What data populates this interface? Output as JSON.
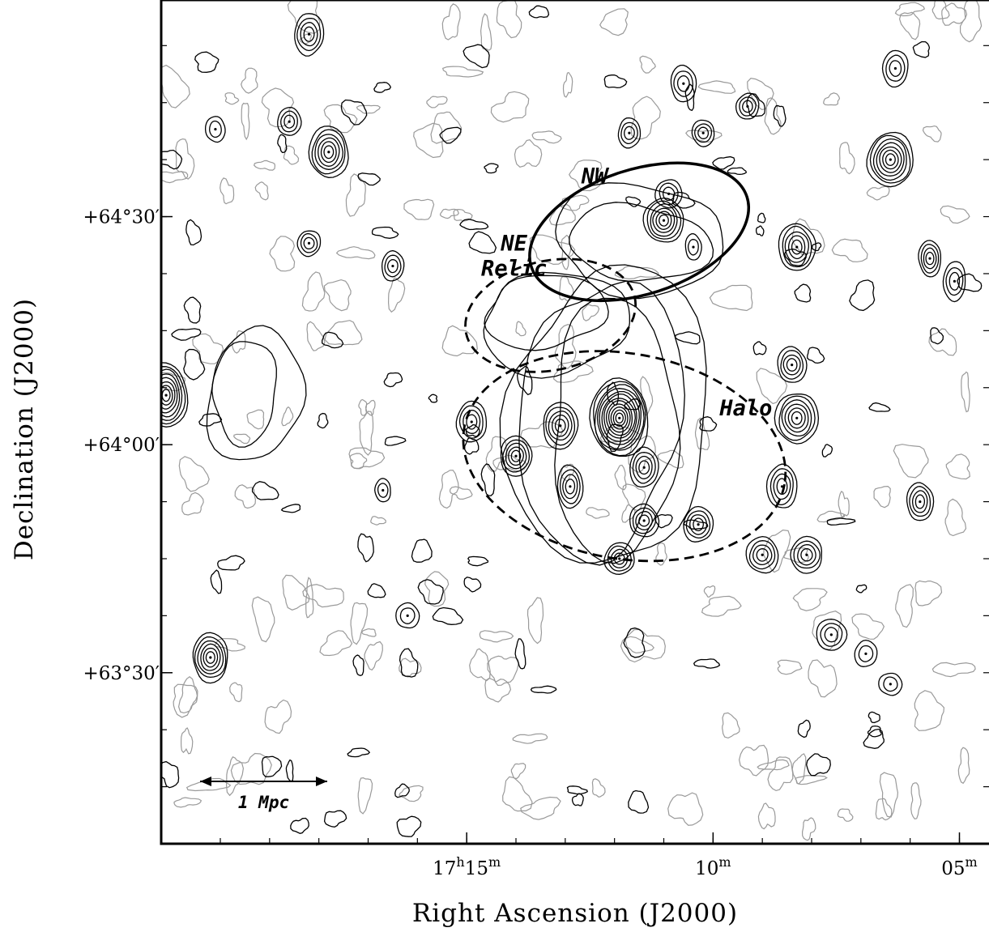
{
  "chart_data": {
    "type": "contour",
    "xlabel": "Right Ascension (J2000)",
    "ylabel": "Declination (J2000)",
    "x_ticks": [
      {
        "ra_min": 1035,
        "h": "17",
        "m": "15"
      },
      {
        "ra_min": 1030,
        "h": "",
        "m": "10"
      },
      {
        "ra_min": 1025,
        "h": "",
        "m": "05"
      }
    ],
    "y_ticks": [
      {
        "dec_arcmin": 3870,
        "label": "+64°30′"
      },
      {
        "dec_arcmin": 3840,
        "label": "+64°00′"
      },
      {
        "dec_arcmin": 3810,
        "label": "+63°30′"
      }
    ],
    "xlim_ra_min": [
      1041.2,
      1024.4
    ],
    "ylim_dec_arcmin": [
      3787.5,
      3898.5
    ],
    "regions": [
      {
        "name": "NW",
        "label_lines": [
          "NW"
        ],
        "ra": 1031.5,
        "dec": 3868,
        "a": 2.3,
        "b": 8.2,
        "angle": -18,
        "style": "solid"
      },
      {
        "name": "NE Relic",
        "label_lines": [
          "NE",
          "Relic"
        ],
        "ra": 1033.3,
        "dec": 3857,
        "a": 1.75,
        "b": 7.2,
        "angle": -12,
        "style": "dashed"
      },
      {
        "name": "Halo",
        "label_lines": [
          "Halo"
        ],
        "ra": 1031.8,
        "dec": 3838.5,
        "a": 3.3,
        "b": 13.5,
        "angle": 10,
        "style": "dashed"
      }
    ],
    "scale_bar": {
      "label": "1 Mpc"
    },
    "sources": [
      {
        "ra": 1031.9,
        "dec": 3843.5,
        "n": 12,
        "step": 6,
        "rx": 36,
        "ry": 48
      },
      {
        "ra": 1026.4,
        "dec": 3877.5,
        "n": 7,
        "step": 5,
        "rx": 28,
        "ry": 34
      },
      {
        "ra": 1041.1,
        "dec": 3846.5,
        "n": 8,
        "step": 5,
        "rx": 26,
        "ry": 40
      },
      {
        "ra": 1037.8,
        "dec": 3878.5,
        "n": 6,
        "step": 5,
        "rx": 24,
        "ry": 32
      },
      {
        "ra": 1031.0,
        "dec": 3869.5,
        "n": 6,
        "step": 5,
        "rx": 24,
        "ry": 28
      },
      {
        "ra": 1028.3,
        "dec": 3843.5,
        "n": 6,
        "step": 5,
        "rx": 26,
        "ry": 32
      },
      {
        "ra": 1028.3,
        "dec": 3866.0,
        "n": 5,
        "step": 5,
        "rx": 22,
        "ry": 30
      },
      {
        "ra": 1040.2,
        "dec": 3812.0,
        "n": 6,
        "step": 5,
        "rx": 22,
        "ry": 30
      },
      {
        "ra": 1033.1,
        "dec": 3842.5,
        "n": 5,
        "step": 5,
        "rx": 22,
        "ry": 28
      },
      {
        "ra": 1034.0,
        "dec": 3838.5,
        "n": 5,
        "step": 5,
        "rx": 20,
        "ry": 24
      },
      {
        "ra": 1034.9,
        "dec": 3843.0,
        "n": 4,
        "step": 5,
        "rx": 18,
        "ry": 26
      },
      {
        "ra": 1031.4,
        "dec": 3837.0,
        "n": 4,
        "step": 5,
        "rx": 18,
        "ry": 24
      },
      {
        "ra": 1032.9,
        "dec": 3834.5,
        "n": 4,
        "step": 5,
        "rx": 16,
        "ry": 26
      },
      {
        "ra": 1031.4,
        "dec": 3830.0,
        "n": 4,
        "step": 5,
        "rx": 18,
        "ry": 20
      },
      {
        "ra": 1030.3,
        "dec": 3829.5,
        "n": 4,
        "step": 5,
        "rx": 18,
        "ry": 22
      },
      {
        "ra": 1028.4,
        "dec": 3850.5,
        "n": 4,
        "step": 5,
        "rx": 18,
        "ry": 22
      },
      {
        "ra": 1028.6,
        "dec": 3834.5,
        "n": 4,
        "step": 5,
        "rx": 18,
        "ry": 28
      },
      {
        "ra": 1029.0,
        "dec": 3825.5,
        "n": 4,
        "step": 5,
        "rx": 20,
        "ry": 22
      },
      {
        "ra": 1028.1,
        "dec": 3825.5,
        "n": 4,
        "step": 5,
        "rx": 20,
        "ry": 22
      },
      {
        "ra": 1027.6,
        "dec": 3815.0,
        "n": 3,
        "step": 5,
        "rx": 18,
        "ry": 20
      },
      {
        "ra": 1031.9,
        "dec": 3825.0,
        "n": 4,
        "step": 5,
        "rx": 18,
        "ry": 20
      },
      {
        "ra": 1025.8,
        "dec": 3832.5,
        "n": 4,
        "step": 5,
        "rx": 16,
        "ry": 24
      },
      {
        "ra": 1025.6,
        "dec": 3864.5,
        "n": 4,
        "step": 5,
        "rx": 14,
        "ry": 22
      },
      {
        "ra": 1038.2,
        "dec": 3866.5,
        "n": 3,
        "step": 5,
        "rx": 14,
        "ry": 16
      },
      {
        "ra": 1038.2,
        "dec": 3894.0,
        "n": 4,
        "step": 5,
        "rx": 18,
        "ry": 26
      },
      {
        "ra": 1038.6,
        "dec": 3882.5,
        "n": 3,
        "step": 5,
        "rx": 14,
        "ry": 18
      },
      {
        "ra": 1030.6,
        "dec": 3887.5,
        "n": 3,
        "step": 5,
        "rx": 16,
        "ry": 22
      },
      {
        "ra": 1029.3,
        "dec": 3884.5,
        "n": 3,
        "step": 5,
        "rx": 14,
        "ry": 16
      },
      {
        "ra": 1030.9,
        "dec": 3873.0,
        "n": 3,
        "step": 5,
        "rx": 16,
        "ry": 18
      },
      {
        "ra": 1026.3,
        "dec": 3889.5,
        "n": 3,
        "step": 5,
        "rx": 16,
        "ry": 22
      },
      {
        "ra": 1036.5,
        "dec": 3863.5,
        "n": 3,
        "step": 5,
        "rx": 14,
        "ry": 18
      },
      {
        "ra": 1031.7,
        "dec": 3881.0,
        "n": 3,
        "step": 5,
        "rx": 14,
        "ry": 18
      },
      {
        "ra": 1030.2,
        "dec": 3881.0,
        "n": 3,
        "step": 5,
        "rx": 14,
        "ry": 16
      },
      {
        "ra": 1025.1,
        "dec": 3861.5,
        "n": 3,
        "step": 5,
        "rx": 14,
        "ry": 24
      },
      {
        "ra": 1040.1,
        "dec": 3881.5,
        "n": 2,
        "step": 6,
        "rx": 12,
        "ry": 16
      },
      {
        "ra": 1026.9,
        "dec": 3812.5,
        "n": 2,
        "step": 5,
        "rx": 14,
        "ry": 16
      },
      {
        "ra": 1026.4,
        "dec": 3808.5,
        "n": 2,
        "step": 5,
        "rx": 14,
        "ry": 14
      },
      {
        "ra": 1036.2,
        "dec": 3817.5,
        "n": 2,
        "step": 5,
        "rx": 14,
        "ry": 16
      },
      {
        "ra": 1030.4,
        "dec": 3866.0,
        "n": 2,
        "step": 4,
        "rx": 10,
        "ry": 16
      },
      {
        "ra": 1036.7,
        "dec": 3834.0,
        "n": 2,
        "step": 4,
        "rx": 10,
        "ry": 14
      }
    ]
  }
}
